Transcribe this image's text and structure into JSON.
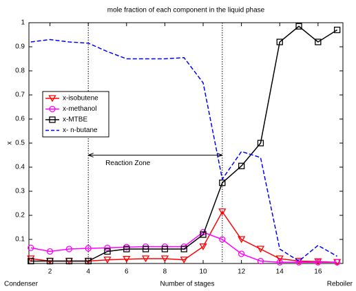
{
  "chart_data": {
    "type": "line",
    "title": "mole fraction of each component in the liquid phase",
    "xlabel": "Number of stages",
    "ylabel": "x",
    "x": [
      1,
      2,
      3,
      4,
      5,
      6,
      7,
      8,
      9,
      10,
      11,
      12,
      13,
      14,
      15,
      16,
      17
    ],
    "series": [
      {
        "name": "x-isobutene",
        "color": "#ff0000",
        "marker": "triangle-down",
        "dash": false,
        "values": [
          0.02,
          0.01,
          0.01,
          0.01,
          0.015,
          0.018,
          0.02,
          0.02,
          0.015,
          0.07,
          0.215,
          0.1,
          0.06,
          0.02,
          0.01,
          0.008,
          0.005
        ]
      },
      {
        "name": "x-methanol",
        "color": "#ff00ff",
        "marker": "circle",
        "dash": false,
        "values": [
          0.065,
          0.05,
          0.06,
          0.063,
          0.065,
          0.068,
          0.07,
          0.07,
          0.07,
          0.13,
          0.1,
          0.04,
          0.01,
          0.005,
          0.005,
          0.005,
          0.005
        ]
      },
      {
        "name": "x-MTBE",
        "color": "#000000",
        "marker": "square",
        "dash": false,
        "values": [
          0.01,
          0.01,
          0.01,
          0.01,
          0.05,
          0.06,
          0.06,
          0.06,
          0.06,
          0.12,
          0.335,
          0.405,
          0.5,
          0.92,
          0.985,
          0.92,
          0.97
        ]
      },
      {
        "name": "x- n-butane",
        "color": "#0000ff",
        "marker": "none",
        "dash": true,
        "values": [
          0.92,
          0.93,
          0.92,
          0.915,
          0.88,
          0.85,
          0.85,
          0.85,
          0.855,
          0.75,
          0.35,
          0.465,
          0.44,
          0.06,
          0.01,
          0.075,
          0.03
        ]
      }
    ],
    "xlim": [
      0.9,
      17.3
    ],
    "ylim": [
      0,
      1
    ],
    "xticks": [
      2,
      4,
      6,
      8,
      10,
      12,
      14,
      16
    ],
    "yticks": [
      0.1,
      0.2,
      0.3,
      0.4,
      0.5,
      0.6,
      0.7,
      0.8,
      0.9,
      1
    ],
    "vlines": [
      4,
      11
    ],
    "annotations": [
      {
        "text": "Reaction Zone",
        "y": 0.45
      }
    ],
    "x_end_labels": [
      "Condenser",
      "Reboiler"
    ],
    "legend": "center left",
    "grid": false
  }
}
